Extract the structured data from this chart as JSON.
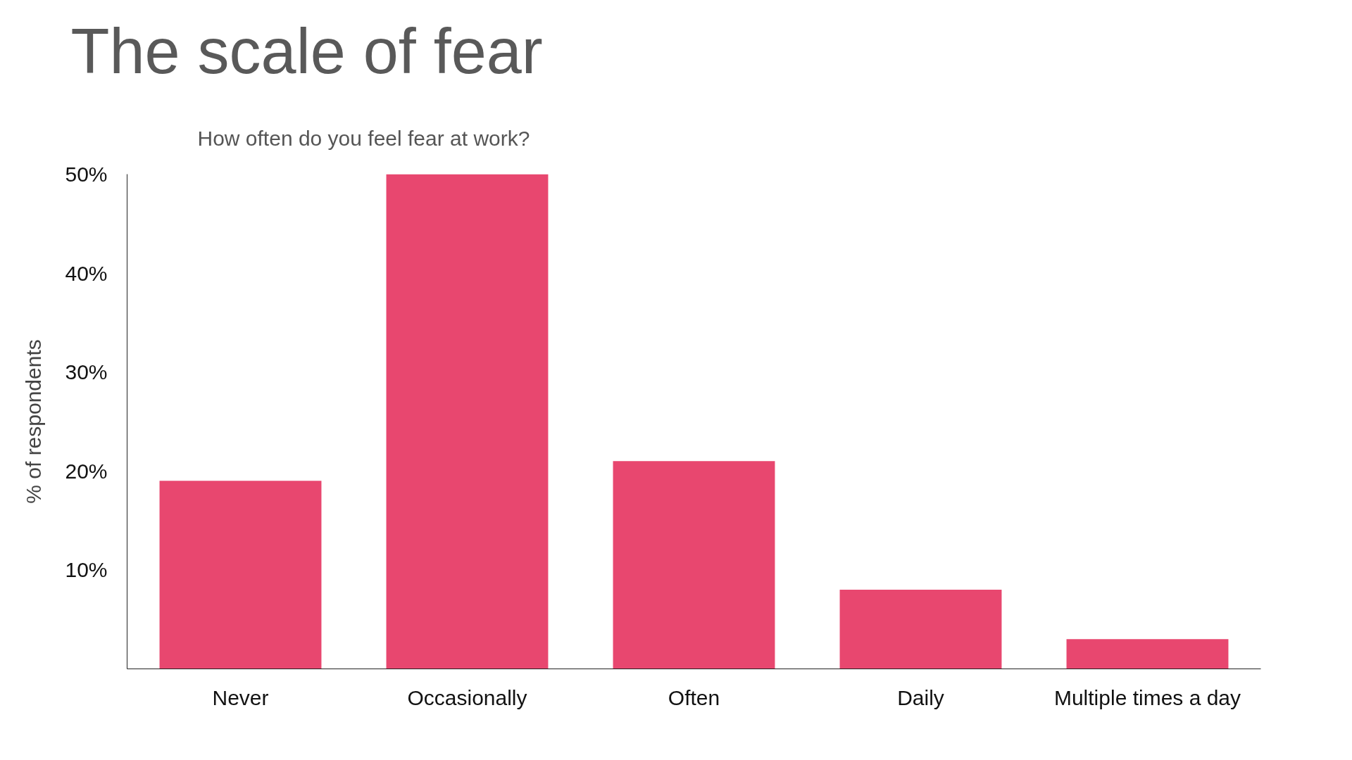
{
  "chart_data": {
    "type": "bar",
    "title": "The scale of fear",
    "subtitle": "How often do you feel fear at work?",
    "ylabel": "% of respondents",
    "categories": [
      "Never",
      "Occasionally",
      "Often",
      "Daily",
      "Multiple times a day"
    ],
    "values": [
      19,
      50,
      21,
      8,
      3
    ],
    "color": "#e8476f",
    "ylim": [
      0,
      50
    ],
    "yticks": [
      {
        "value": 10,
        "label": "10%"
      },
      {
        "value": 20,
        "label": "20%"
      },
      {
        "value": 30,
        "label": "30%"
      },
      {
        "value": 40,
        "label": "40%"
      },
      {
        "value": 50,
        "label": "50%"
      }
    ],
    "grid": false
  }
}
